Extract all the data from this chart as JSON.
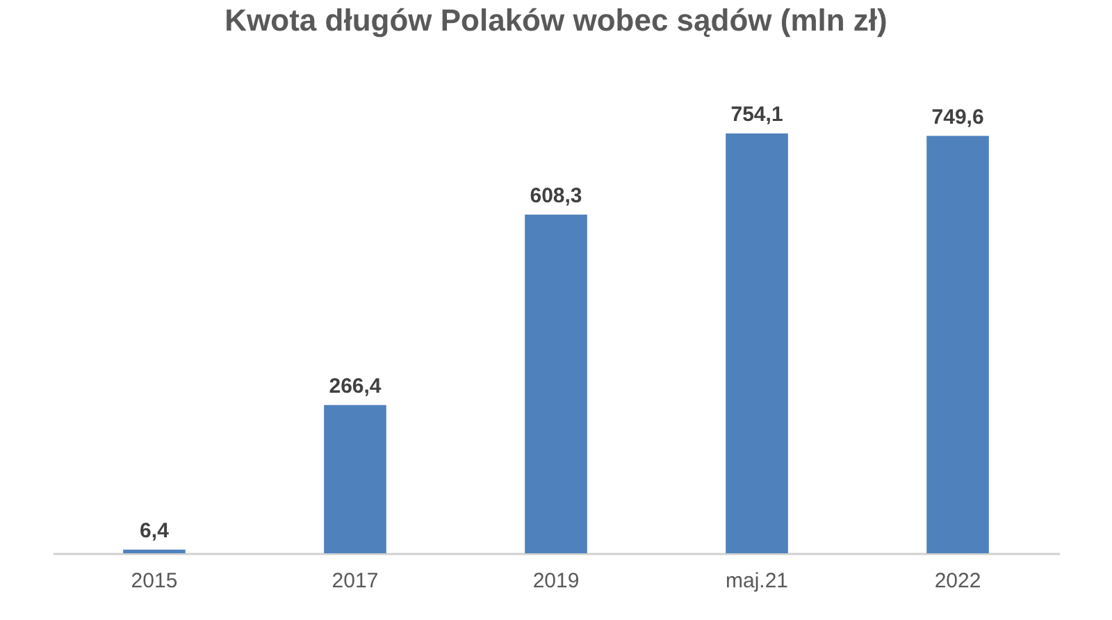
{
  "chart_data": {
    "type": "bar",
    "title": "Kwota długów Polaków wobec sądów (mln zł)",
    "categories": [
      "2015",
      "2017",
      "2019",
      "maj.21",
      "2022"
    ],
    "values": [
      6.4,
      266.4,
      608.3,
      754.1,
      749.6
    ],
    "value_labels": [
      "6,4",
      "266,4",
      "608,3",
      "754,1",
      "749,6"
    ],
    "color": "#4f81bd"
  }
}
